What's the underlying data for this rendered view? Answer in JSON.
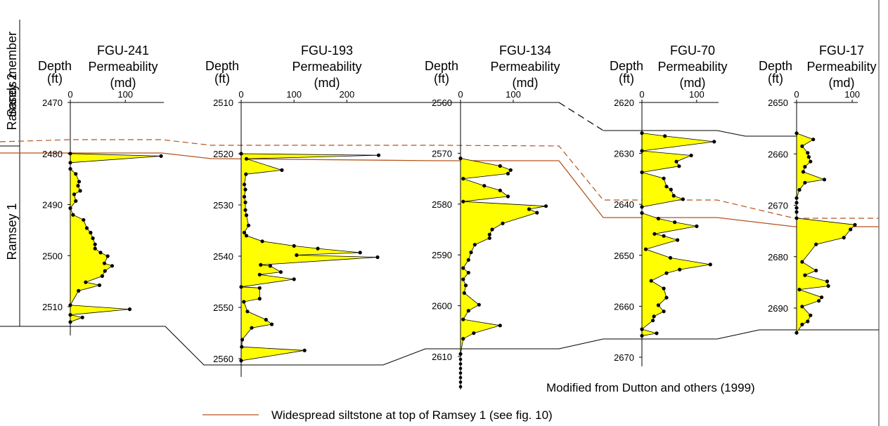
{
  "side_labels": {
    "upper_member": "Ramsey 2",
    "lower_member": "Ramsey 1",
    "column_title": "Sands member"
  },
  "source_note": "Modified from Dutton and others (1999)",
  "legend": {
    "label": "Widespread siltstone at top of Ramsey 1 (see fig. 10)",
    "color": "#b5541f"
  },
  "colors": {
    "fill": "#ffff00",
    "marker": "#000000",
    "siltstone": "#b5541f",
    "correlation": "#000000"
  },
  "chart_data": [
    {
      "type": "area",
      "well": "FGU-241",
      "depth_header": [
        "Depth",
        "(ft)"
      ],
      "perm_header": [
        "FGU-241",
        "Permeability",
        "(md)"
      ],
      "xticks": [
        0,
        100
      ],
      "xlim": [
        0,
        170
      ],
      "yticks": [
        2470,
        2480,
        2490,
        2500,
        2510
      ],
      "ylim": [
        2470,
        2512.5
      ],
      "series": [
        {
          "x": [
            0,
            165,
            0,
            0,
            10,
            16,
            14,
            18,
            7,
            10,
            0,
            5,
            24,
            30,
            37,
            41,
            45,
            45,
            55,
            68,
            62,
            76,
            63,
            58,
            28,
            53,
            15,
            0,
            108,
            0,
            22,
            0
          ],
          "y": [
            2480,
            2480.5,
            2481.8,
            2483,
            2484,
            2485.5,
            2486.3,
            2487.3,
            2488,
            2489.3,
            2490.7,
            2492,
            2493,
            2494.6,
            2495.5,
            2496.6,
            2497.8,
            2498.6,
            2499.4,
            2500.1,
            2501.5,
            2502,
            2503,
            2504,
            2505.2,
            2505.8,
            2506.9,
            2509.7,
            2510.5,
            2511.6,
            2512.1,
            2513
          ]
        }
      ]
    },
    {
      "type": "area",
      "well": "FGU-193",
      "depth_header": [
        "Depth",
        "(ft)"
      ],
      "perm_header": [
        "FGU-193",
        "Permeability",
        "(md)"
      ],
      "xticks": [
        0,
        100,
        200
      ],
      "xlim": [
        0,
        270
      ],
      "yticks": [
        2510,
        2520,
        2530,
        2540,
        2550,
        2560
      ],
      "ylim": [
        2510,
        2563
      ],
      "series": [
        {
          "x": [
            0,
            260,
            10,
            77,
            9,
            6,
            8,
            6,
            8,
            8,
            10,
            14,
            6,
            10,
            40,
            100,
            145,
            225,
            105,
            258,
            37,
            55,
            75,
            35,
            100,
            0,
            35,
            35,
            5,
            12,
            47,
            58,
            20,
            2,
            1,
            120,
            0
          ],
          "y": [
            2520,
            2520.3,
            2521,
            2523.2,
            2524,
            2526,
            2527,
            2528.4,
            2529.5,
            2531,
            2532,
            2534,
            2535.4,
            2536,
            2537.1,
            2538,
            2538.5,
            2539.3,
            2539.8,
            2540.2,
            2541.7,
            2541.9,
            2543.1,
            2543.6,
            2544.5,
            2546,
            2546.2,
            2548.3,
            2548.9,
            2550.8,
            2552.4,
            2553.3,
            2554,
            2556.3,
            2557.7,
            2558.4,
            2560.4
          ]
        }
      ]
    },
    {
      "type": "area",
      "well": "FGU-134",
      "depth_header": [
        "Depth",
        "(ft)"
      ],
      "perm_header": [
        "FGU-134",
        "Permeability",
        "(md)"
      ],
      "xticks": [
        0,
        100
      ],
      "xlim": [
        0,
        180
      ],
      "yticks": [
        2560,
        2570,
        2580,
        2590,
        2600,
        2610
      ],
      "ylim": [
        2560,
        2610.5
      ],
      "series": [
        {
          "x": [
            0,
            75,
            95,
            90,
            5,
            45,
            75,
            90,
            5,
            162,
            130,
            145,
            80,
            60,
            55,
            55,
            27,
            20,
            15,
            5,
            15,
            5,
            10,
            7,
            35,
            15,
            5,
            75,
            25,
            5,
            0
          ],
          "y": [
            2571,
            2572.5,
            2573.3,
            2574,
            2575,
            2576.4,
            2577.3,
            2578.5,
            2579.5,
            2580.4,
            2581,
            2581.7,
            2583.8,
            2585,
            2586,
            2586.7,
            2588,
            2589.5,
            2591,
            2592.6,
            2593.5,
            2594.8,
            2596,
            2597.5,
            2599.8,
            2601,
            2602.7,
            2603.9,
            2605.4,
            2606.5,
            2609.5
          ]
        }
      ]
    },
    {
      "type": "area",
      "well": "FGU-70",
      "depth_header": [
        "Depth",
        "(ft)"
      ],
      "perm_header": [
        "FGU-70",
        "Permeability",
        "(md)"
      ],
      "xticks": [
        0,
        100
      ],
      "xlim": [
        0,
        140
      ],
      "yticks": [
        2620,
        2630,
        2640,
        2650,
        2660,
        2670
      ],
      "ylim": [
        2620,
        2671
      ],
      "series": [
        {
          "x": [
            0,
            42,
            132,
            0,
            90,
            63,
            68,
            0,
            40,
            45,
            53,
            58,
            75,
            0,
            0,
            30,
            60,
            100,
            23,
            40,
            65,
            7,
            52,
            125,
            69,
            45,
            17,
            40,
            45,
            30,
            40,
            22,
            20,
            0,
            27,
            0
          ],
          "y": [
            2626,
            2626.6,
            2627.7,
            2629.5,
            2630.4,
            2631.6,
            2632.5,
            2633.7,
            2634.9,
            2636.5,
            2637.1,
            2638.3,
            2639,
            2640.5,
            2641.7,
            2642.8,
            2643.5,
            2644.3,
            2645.8,
            2646.2,
            2647,
            2648.8,
            2650.5,
            2651.8,
            2652.8,
            2653.5,
            2655,
            2656.5,
            2658.3,
            2659.8,
            2661,
            2662,
            2662.8,
            2664.5,
            2665.3,
            2665.8
          ]
        }
      ]
    },
    {
      "type": "area",
      "well": "FGU-17",
      "depth_header": [
        "Depth",
        "(ft)"
      ],
      "perm_header": [
        "FGU-17",
        "Permeability",
        "(md)"
      ],
      "xticks": [
        0,
        100
      ],
      "xlim": [
        0,
        110
      ],
      "yticks": [
        2650,
        2660,
        2670,
        2680,
        2690
      ],
      "ylim": [
        2650,
        2696
      ],
      "series": [
        {
          "x": [
            0,
            30,
            10,
            20,
            22,
            25,
            15,
            12,
            50,
            15,
            5,
            0,
            0,
            0,
            0,
            0,
            105,
            97,
            85,
            35,
            10,
            35,
            15,
            55,
            57,
            5,
            45,
            40,
            10,
            25,
            20,
            10,
            0
          ],
          "y": [
            2656,
            2657.2,
            2658.5,
            2659.8,
            2660.6,
            2661.5,
            2662.5,
            2663.5,
            2665,
            2665.6,
            2667,
            2668.6,
            2669.5,
            2670.5,
            2671.3,
            2672.5,
            2673.8,
            2674.7,
            2676.3,
            2677.6,
            2681,
            2682.7,
            2683.6,
            2684.8,
            2685.7,
            2686.4,
            2687.9,
            2688.6,
            2689.7,
            2691.4,
            2692.6,
            2693.2,
            2694.8
          ]
        }
      ]
    }
  ]
}
